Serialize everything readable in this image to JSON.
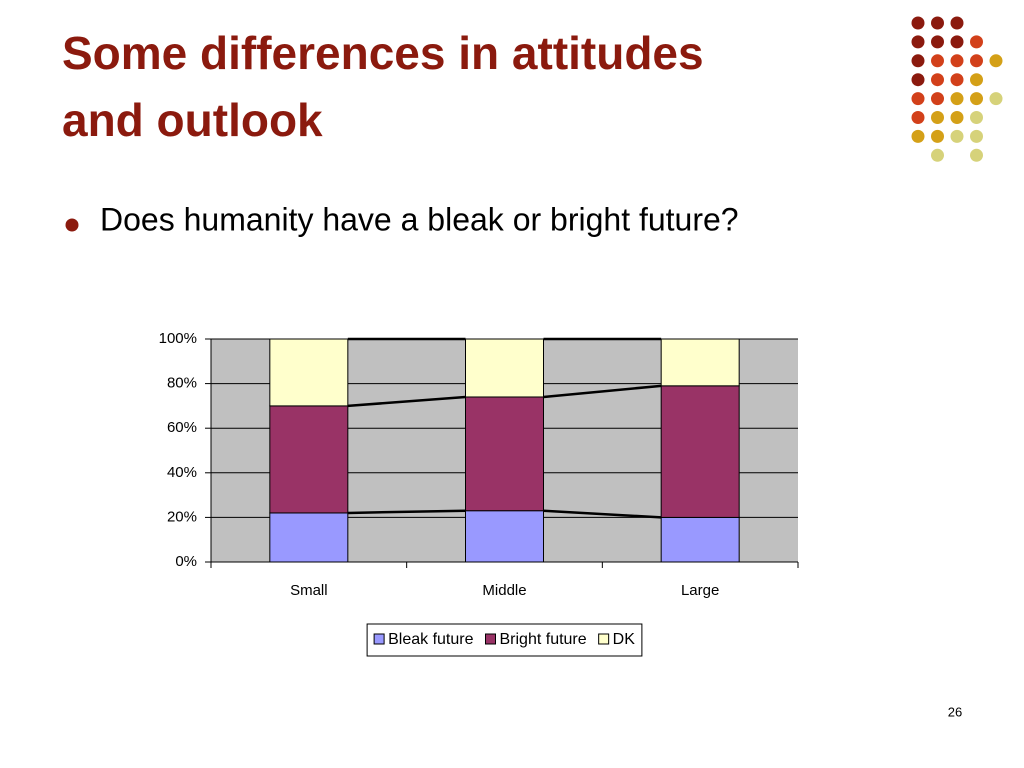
{
  "title_lines": [
    "Some differences in attitudes",
    "and outlook"
  ],
  "bullet": "Does humanity have a bleak or bright future?",
  "slide_number": "26",
  "chart_data": {
    "type": "stacked-bar",
    "categories": [
      "Small",
      "Middle",
      "Large"
    ],
    "series": [
      {
        "name": "Bleak future",
        "color": "#9999ff",
        "values": [
          22,
          23,
          20
        ]
      },
      {
        "name": "Bright future",
        "color": "#993366",
        "values": [
          48,
          51,
          59
        ]
      },
      {
        "name": "DK",
        "color": "#ffffcc",
        "values": [
          30,
          26,
          21
        ]
      }
    ],
    "ylim": [
      0,
      100
    ],
    "yticks": [
      {
        "value": 0,
        "label": "0%"
      },
      {
        "value": 20,
        "label": "20%"
      },
      {
        "value": 40,
        "label": "40%"
      },
      {
        "value": 60,
        "label": "60%"
      },
      {
        "value": 80,
        "label": "80%"
      },
      {
        "value": 100,
        "label": "100%"
      }
    ],
    "grid": true,
    "plot_background": "#c0c0c0",
    "legend": "bottom"
  }
}
